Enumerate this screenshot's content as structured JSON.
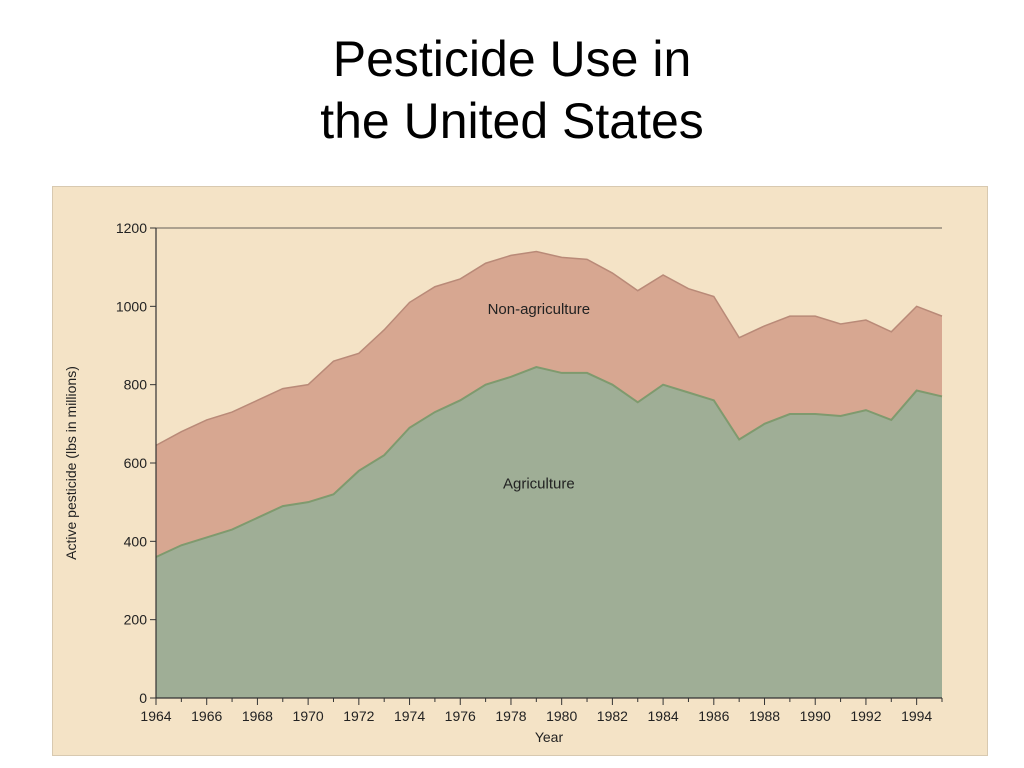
{
  "title": {
    "line1": "Pesticide Use in",
    "line2": "the United States"
  },
  "colors": {
    "panel": "#f4e3c6",
    "agriculture": "#9fae96",
    "agriculture_edge": "#7f9a6e",
    "non_agriculture": "#d7a791",
    "non_agriculture_edge": "#b98a78",
    "axis": "#333333"
  },
  "chart_data": {
    "type": "area",
    "stacked": true,
    "title": "",
    "xlabel": "Year",
    "ylabel": "Active pesticide (lbs in millions)",
    "xlim": [
      1964,
      1995
    ],
    "ylim": [
      0,
      1200
    ],
    "xticks": [
      1964,
      1966,
      1968,
      1970,
      1972,
      1974,
      1976,
      1978,
      1980,
      1982,
      1984,
      1986,
      1988,
      1990,
      1992,
      1994
    ],
    "yticks": [
      0,
      200,
      400,
      600,
      800,
      1000,
      1200
    ],
    "x": [
      1964,
      1965,
      1966,
      1967,
      1968,
      1969,
      1970,
      1971,
      1972,
      1973,
      1974,
      1975,
      1976,
      1977,
      1978,
      1979,
      1980,
      1981,
      1982,
      1983,
      1984,
      1985,
      1986,
      1987,
      1988,
      1989,
      1990,
      1991,
      1992,
      1993,
      1994,
      1995
    ],
    "series": [
      {
        "name": "Agriculture",
        "values": [
          360,
          390,
          410,
          430,
          460,
          490,
          500,
          520,
          580,
          620,
          690,
          730,
          760,
          800,
          820,
          845,
          830,
          830,
          800,
          755,
          800,
          780,
          760,
          660,
          700,
          725,
          725,
          720,
          735,
          710,
          785,
          770
        ]
      },
      {
        "name": "Non-agriculture",
        "total": [
          645,
          680,
          710,
          730,
          760,
          790,
          800,
          860,
          880,
          940,
          1010,
          1050,
          1070,
          1110,
          1130,
          1140,
          1125,
          1120,
          1085,
          1040,
          1080,
          1045,
          1025,
          920,
          950,
          975,
          975,
          955,
          965,
          935,
          1000,
          975
        ]
      }
    ],
    "annotations": {
      "agriculture": "Agriculture",
      "non_agriculture": "Non-agriculture"
    }
  }
}
